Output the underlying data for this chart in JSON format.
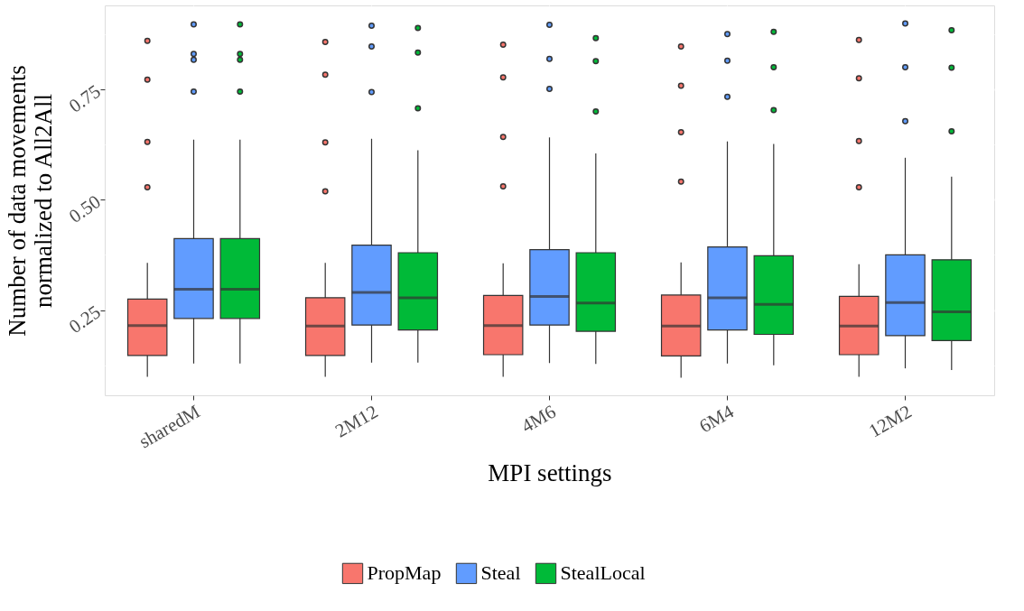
{
  "chart_data": {
    "type": "box",
    "xlabel": "MPI settings",
    "ylabel": "Number of data movements\nnormalized to All2All",
    "categories": [
      "sharedM",
      "2M12",
      "4M6",
      "6M4",
      "12M2"
    ],
    "ylim": [
      0.057,
      0.94
    ],
    "yticks": [
      {
        "value": 0.125,
        "label": null
      },
      {
        "value": 0.25,
        "label": "0.25"
      },
      {
        "value": 0.375,
        "label": null
      },
      {
        "value": 0.5,
        "label": "0.50"
      },
      {
        "value": 0.625,
        "label": null
      },
      {
        "value": 0.75,
        "label": "0.75"
      },
      {
        "value": 0.875,
        "label": null
      }
    ],
    "grid": true,
    "legend": "bottom",
    "series": [
      {
        "name": "PropMap",
        "color": "#f8766d",
        "boxes": [
          {
            "low": 0.099,
            "q1": 0.147,
            "median": 0.215,
            "q3": 0.275,
            "high": 0.357,
            "outliers": [
              0.528,
              0.631,
              0.772,
              0.86
            ]
          },
          {
            "low": 0.099,
            "q1": 0.147,
            "median": 0.214,
            "q3": 0.278,
            "high": 0.357,
            "outliers": [
              0.519,
              0.63,
              0.783,
              0.857
            ]
          },
          {
            "low": 0.099,
            "q1": 0.149,
            "median": 0.215,
            "q3": 0.283,
            "high": 0.356,
            "outliers": [
              0.53,
              0.642,
              0.777,
              0.851
            ]
          },
          {
            "low": 0.097,
            "q1": 0.146,
            "median": 0.214,
            "q3": 0.284,
            "high": 0.358,
            "outliers": [
              0.541,
              0.653,
              0.758,
              0.847
            ]
          },
          {
            "low": 0.099,
            "q1": 0.149,
            "median": 0.214,
            "q3": 0.281,
            "high": 0.354,
            "outliers": [
              0.528,
              0.633,
              0.775,
              0.862
            ]
          }
        ]
      },
      {
        "name": "Steal",
        "color": "#619cff",
        "boxes": [
          {
            "low": 0.129,
            "q1": 0.231,
            "median": 0.297,
            "q3": 0.412,
            "high": 0.636,
            "outliers": [
              0.745,
              0.817,
              0.83,
              0.897
            ]
          },
          {
            "low": 0.131,
            "q1": 0.216,
            "median": 0.29,
            "q3": 0.397,
            "high": 0.638,
            "outliers": [
              0.744,
              0.847,
              0.894
            ]
          },
          {
            "low": 0.13,
            "q1": 0.216,
            "median": 0.281,
            "q3": 0.387,
            "high": 0.641,
            "outliers": [
              0.751,
              0.819,
              0.896
            ]
          },
          {
            "low": 0.129,
            "q1": 0.205,
            "median": 0.278,
            "q3": 0.393,
            "high": 0.632,
            "outliers": [
              0.733,
              0.815,
              0.875
            ]
          },
          {
            "low": 0.118,
            "q1": 0.192,
            "median": 0.267,
            "q3": 0.375,
            "high": 0.595,
            "outliers": [
              0.678,
              0.8,
              0.899
            ]
          }
        ]
      },
      {
        "name": "StealLocal",
        "color": "#00ba38",
        "boxes": [
          {
            "low": 0.129,
            "q1": 0.231,
            "median": 0.297,
            "q3": 0.412,
            "high": 0.636,
            "outliers": [
              0.745,
              0.817,
              0.83,
              0.897
            ]
          },
          {
            "low": 0.131,
            "q1": 0.205,
            "median": 0.278,
            "q3": 0.38,
            "high": 0.612,
            "outliers": [
              0.707,
              0.833,
              0.889
            ]
          },
          {
            "low": 0.128,
            "q1": 0.202,
            "median": 0.266,
            "q3": 0.38,
            "high": 0.605,
            "outliers": [
              0.7,
              0.814,
              0.866
            ]
          },
          {
            "low": 0.125,
            "q1": 0.195,
            "median": 0.263,
            "q3": 0.373,
            "high": 0.626,
            "outliers": [
              0.703,
              0.8,
              0.88
            ]
          },
          {
            "low": 0.114,
            "q1": 0.181,
            "median": 0.246,
            "q3": 0.364,
            "high": 0.552,
            "outliers": [
              0.655,
              0.799,
              0.884
            ]
          }
        ]
      }
    ]
  }
}
